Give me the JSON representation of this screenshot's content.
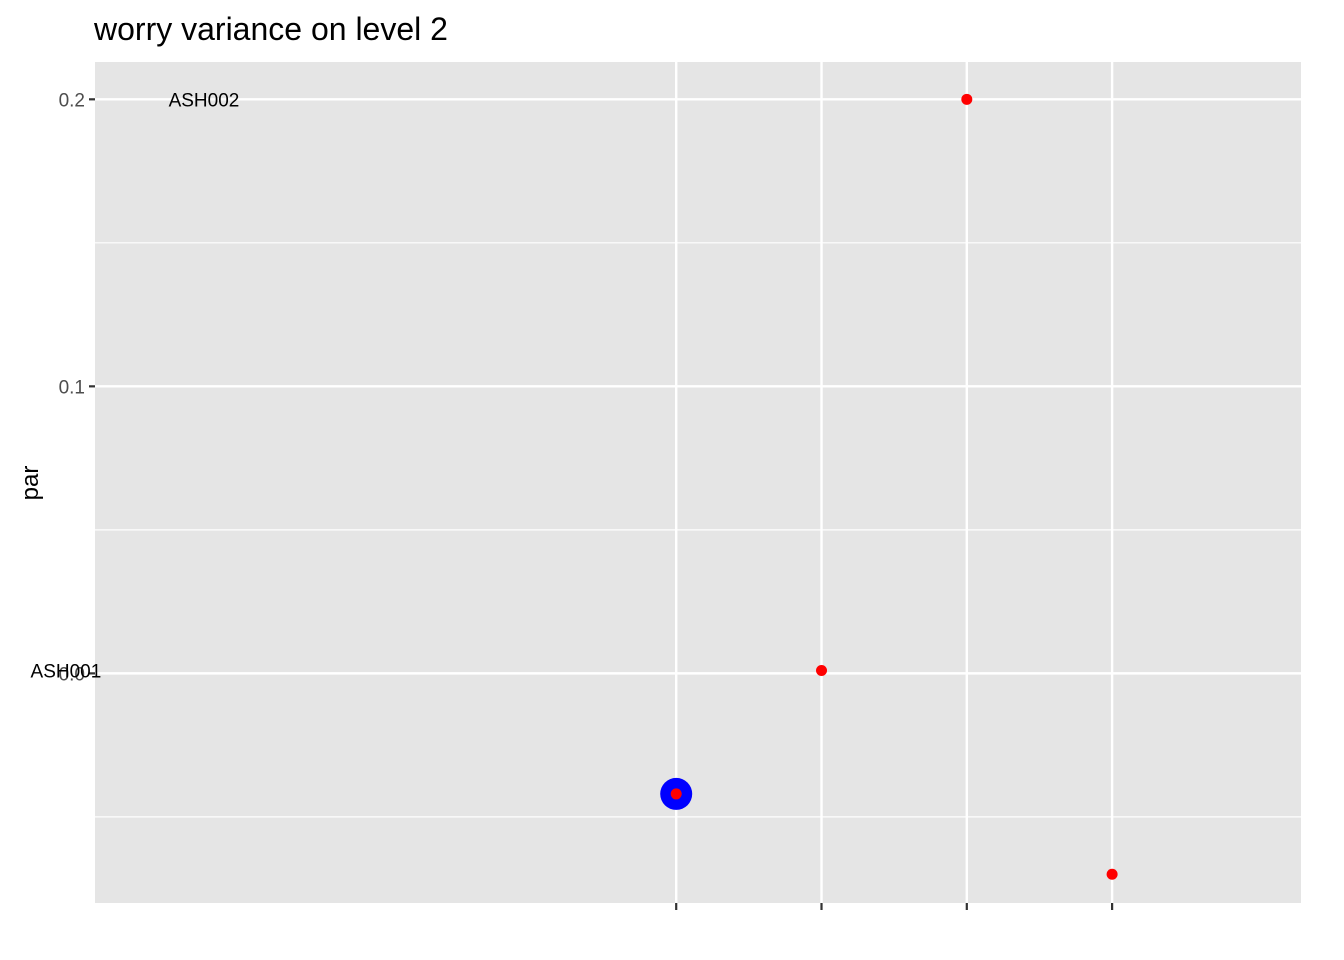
{
  "chart_data": {
    "type": "scatter",
    "title": "worry variance on level 2",
    "xlabel": "",
    "ylabel": "par",
    "ylim": [
      -0.08,
      0.213
    ],
    "y_ticks": [
      0.0,
      0.1,
      0.2
    ],
    "y_tick_labels": [
      "0.0",
      "0.1",
      "0.2"
    ],
    "x_ticks": [
      1,
      2,
      3,
      4
    ],
    "x_tick_labels": [
      "",
      "",
      "",
      ""
    ],
    "xlim": [
      -3,
      5.3
    ],
    "grid": true,
    "points": [
      {
        "x": 1,
        "y": -0.042
      },
      {
        "x": 2,
        "y": 0.001
      },
      {
        "x": 3,
        "y": 0.2
      },
      {
        "x": 4,
        "y": -0.07
      }
    ],
    "highlight": {
      "x": 1,
      "y": -0.042
    },
    "annotations": [
      {
        "text": "ASH002",
        "x": -2.25,
        "y": 0.2
      },
      {
        "text": "ASH001",
        "x": -3.2,
        "y": 0.001
      }
    ],
    "colors": {
      "panel": "#e5e5e5",
      "grid": "#ffffff",
      "point": "#ff0000",
      "highlight": "#0000ff"
    }
  }
}
